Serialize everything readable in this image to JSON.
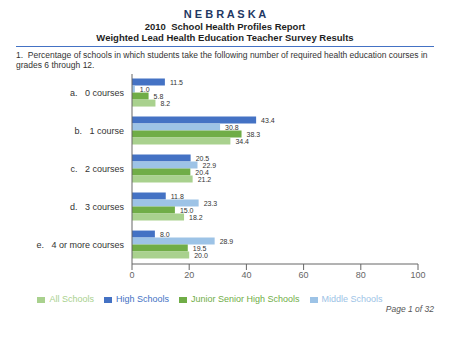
{
  "chart_data": {
    "type": "bar",
    "orientation": "horizontal",
    "title": "N E B R A S K A",
    "subtitle": "2010  School Health Profiles Report\nWeighted Lead Health Education Teacher Survey Results",
    "annotations": [
      "1.  Percentage of schools in which students take the following number of required health education courses in grades 6 through 12.",
      "Page 1 of 32"
    ],
    "categories": [
      "a.   0 courses",
      "b.   1 course",
      "c.   2 courses",
      "d.   3 courses",
      "e.   4 or more courses"
    ],
    "series": [
      {
        "name": "High Schools",
        "color": "#4472C4",
        "values": [
          11.5,
          43.4,
          20.5,
          11.8,
          8.0
        ],
        "value_labels": [
          "11.5",
          "43.4",
          "20.5",
          "11.8",
          "8.0"
        ]
      },
      {
        "name": "Middle Schools",
        "color": "#9DC3E6",
        "values": [
          1.0,
          30.8,
          22.9,
          23.3,
          28.9
        ],
        "value_labels": [
          "1.0",
          "30.8",
          "22.9",
          "23.3",
          "28.9"
        ]
      },
      {
        "name": "Junior Senior High Schools",
        "color": "#70AD47",
        "values": [
          5.8,
          38.3,
          20.4,
          15.0,
          19.5
        ],
        "value_labels": [
          "5.8",
          "38.3",
          "20.4",
          "15.0",
          "19.5"
        ]
      },
      {
        "name": "All Schools",
        "color": "#A9D18E",
        "values": [
          8.2,
          34.4,
          21.2,
          18.2,
          20.0
        ],
        "value_labels": [
          "8.2",
          "34.4",
          "21.2",
          "18.2",
          "20.0"
        ]
      }
    ],
    "xlim": [
      0,
      100
    ],
    "xticks": [
      0,
      20,
      40,
      60,
      80,
      100
    ],
    "data_labels": true,
    "grid": false,
    "legend": "bottom"
  }
}
